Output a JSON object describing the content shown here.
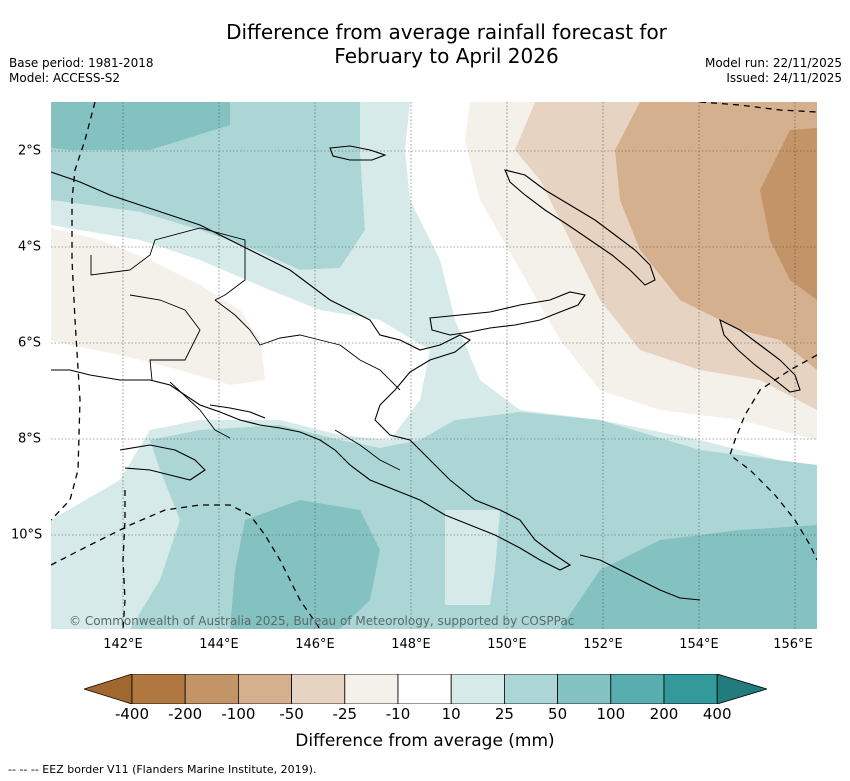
{
  "title_line1": "Difference from average rainfall forecast for",
  "title_line2": "February to April 2026",
  "base_period": "Base period: 1981-2018",
  "model": "Model: ACCESS-S2",
  "model_run": "Model run: 22/11/2025",
  "issued": "Issued: 24/11/2025",
  "copyright": "© Commonwealth of Australia 2025, Bureau of Meteorology, supported by COSPPac",
  "x_ticks": [
    "142°E",
    "144°E",
    "146°E",
    "148°E",
    "150°E",
    "152°E",
    "154°E",
    "156°E"
  ],
  "y_ticks": [
    "2°S",
    "4°S",
    "6°S",
    "8°S",
    "10°S"
  ],
  "legend": {
    "title": "Difference from average (mm)",
    "labels": [
      "-400",
      "-200",
      "-100",
      "-50",
      "-25",
      "-10",
      "10",
      "25",
      "50",
      "100",
      "200",
      "400"
    ],
    "colors": [
      "#a0672f",
      "#b07840",
      "#c29467",
      "#d5b08f",
      "#e7d3c1",
      "#f4f0ea",
      "#ffffff",
      "#d5eae9",
      "#acd6d6",
      "#84c1c1",
      "#58aeae",
      "#33999a",
      "#227b7c"
    ]
  },
  "footnote": "--  --  -- EEZ border V11 (Flanders Marine Institute, 2019)."
}
